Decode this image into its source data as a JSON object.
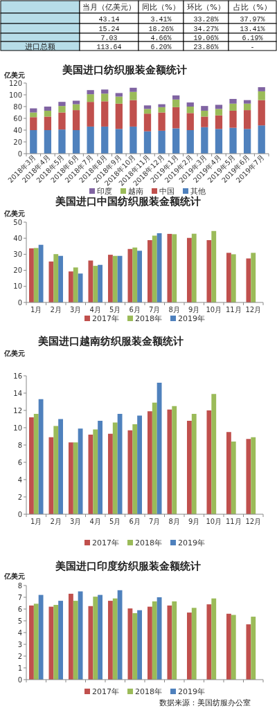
{
  "chart_data": [
    {
      "type": "other",
      "categories": [
        "当月（亿美元）",
        "同比（%）",
        "环比（%）",
        "占比（%）"
      ],
      "y_categories": [
        null,
        null,
        null,
        "进口总额"
      ],
      "cell_labels": [
        [
          "43.14",
          "3.41%",
          "33.28%",
          "37.97%"
        ],
        [
          "15.24",
          "18.26%",
          "34.27%",
          "13.41%"
        ],
        [
          "7.03",
          "4.66%",
          "19.06%",
          "6.19%"
        ],
        [
          "113.64",
          "6.20%",
          "23.86%",
          "-"
        ]
      ]
    },
    {
      "type": "bar",
      "title": "美国进口纺织服装金额统计",
      "ylabel": "亿美元",
      "stacked": true,
      "legend": "bottom",
      "ylim": [
        0,
        120
      ],
      "yticks": [
        0,
        20,
        40,
        60,
        80,
        100,
        120
      ],
      "categories": [
        "2018年3月",
        "2018年4月",
        "2018年5月",
        "2018年6月",
        "2018年7月",
        "2018年8月",
        "2018年9月",
        "2018年10月",
        "2018年11月",
        "2018年12月",
        "2019年1月",
        "2019年2月",
        "2019年3月",
        "2019年4月",
        "2019年5月",
        "2019年6月",
        "2019年7月"
      ],
      "series": [
        {
          "name": "其他",
          "color": "#4f81bd",
          "values": [
            40,
            40,
            41,
            40,
            46,
            46,
            42,
            46,
            38,
            39,
            43,
            40,
            45,
            42,
            44,
            42,
            48
          ]
        },
        {
          "name": "中国",
          "color": "#c0504d",
          "values": [
            22,
            23,
            29,
            34,
            42,
            43,
            43,
            45,
            30,
            31,
            36,
            29,
            18,
            23,
            29,
            32,
            43
          ]
        },
        {
          "name": "越南",
          "color": "#9bbb59",
          "values": [
            8,
            10,
            11,
            10,
            13,
            13,
            12,
            14,
            8,
            9,
            13,
            11,
            10,
            11,
            12,
            11,
            15
          ]
        },
        {
          "name": "印度",
          "color": "#8064a2",
          "values": [
            7,
            7,
            7,
            6,
            7,
            7,
            6,
            7,
            6,
            5,
            7,
            7,
            8,
            7,
            8,
            6,
            7
          ]
        }
      ]
    },
    {
      "type": "bar",
      "title": "美国进口中国纺织服装金额统计",
      "ylabel": "亿美元",
      "legend": "bottom",
      "ylim": [
        0,
        50
      ],
      "yticks": [
        0,
        10,
        20,
        30,
        40,
        50
      ],
      "categories": [
        "1月",
        "2月",
        "3月",
        "4月",
        "5月",
        "6月",
        "7月",
        "8月",
        "9月",
        "10月",
        "11月",
        "12月"
      ],
      "series": [
        {
          "name": "2017年",
          "color": "#c0504d",
          "values": [
            33.7,
            25.5,
            19.3,
            26.1,
            29.7,
            33.3,
            38.8,
            42.7,
            40.2,
            38.8,
            30.9,
            27.4
          ]
        },
        {
          "name": "2018年",
          "color": "#9bbb59",
          "values": [
            33.9,
            30.1,
            21.8,
            22.8,
            29.0,
            34.2,
            41.6,
            42.5,
            42.8,
            44.5,
            30.0,
            30.9
          ]
        },
        {
          "name": "2019年",
          "color": "#4f81bd",
          "values": [
            35.9,
            29.0,
            18.0,
            23.4,
            29.0,
            32.2,
            43.1,
            null,
            null,
            null,
            null,
            null
          ]
        }
      ]
    },
    {
      "type": "bar",
      "title": "美国进口越南纺织服装金额统计",
      "ylabel": "亿美元",
      "legend": "bottom",
      "ylim": [
        0,
        16
      ],
      "yticks": [
        0,
        2,
        4,
        6,
        8,
        10,
        12,
        14,
        16
      ],
      "categories": [
        "1月",
        "2月",
        "3月",
        "4月",
        "5月",
        "6月",
        "7月",
        "8月",
        "9月",
        "10月",
        "11月",
        "12月"
      ],
      "series": [
        {
          "name": "2017年",
          "color": "#c0504d",
          "values": [
            11.2,
            8.9,
            8.3,
            9.2,
            9.3,
            9.7,
            11.9,
            12.1,
            10.8,
            12.0,
            9.5,
            8.7
          ]
        },
        {
          "name": "2018年",
          "color": "#9bbb59",
          "values": [
            11.6,
            10.2,
            8.3,
            9.8,
            10.6,
            10.4,
            12.9,
            12.5,
            11.6,
            13.9,
            8.4,
            8.9
          ]
        },
        {
          "name": "2019年",
          "color": "#4f81bd",
          "values": [
            13.3,
            11.0,
            9.9,
            10.8,
            11.6,
            11.4,
            15.2,
            null,
            null,
            null,
            null,
            null
          ]
        }
      ]
    },
    {
      "type": "bar",
      "title": "美国进口印度纺织服装金额统计",
      "ylabel": "亿美元",
      "legend": "bottom",
      "ylim": [
        0,
        8
      ],
      "yticks": [
        0,
        1,
        2,
        3,
        4,
        5,
        6,
        7,
        8
      ],
      "categories": [
        null,
        null,
        null,
        null,
        null,
        null,
        null,
        null,
        null,
        null,
        null,
        null
      ],
      "annotations": [
        "数据来源：美国纺服办公室"
      ],
      "series": [
        {
          "name": "2017年",
          "color": "#c0504d",
          "values": [
            6.3,
            6.2,
            7.3,
            6.25,
            6.7,
            6.05,
            6.2,
            6.3,
            5.7,
            6.4,
            5.6,
            4.7
          ]
        },
        {
          "name": "2018年",
          "color": "#9bbb59",
          "values": [
            6.45,
            6.35,
            6.7,
            7.05,
            6.9,
            5.65,
            6.65,
            6.65,
            6.1,
            6.9,
            5.5,
            5.35
          ]
        },
        {
          "name": "2019年",
          "color": "#4f81bd",
          "values": [
            7.2,
            6.7,
            7.5,
            7.2,
            7.6,
            5.9,
            7.0,
            null,
            null,
            null,
            null,
            null
          ]
        }
      ]
    }
  ]
}
